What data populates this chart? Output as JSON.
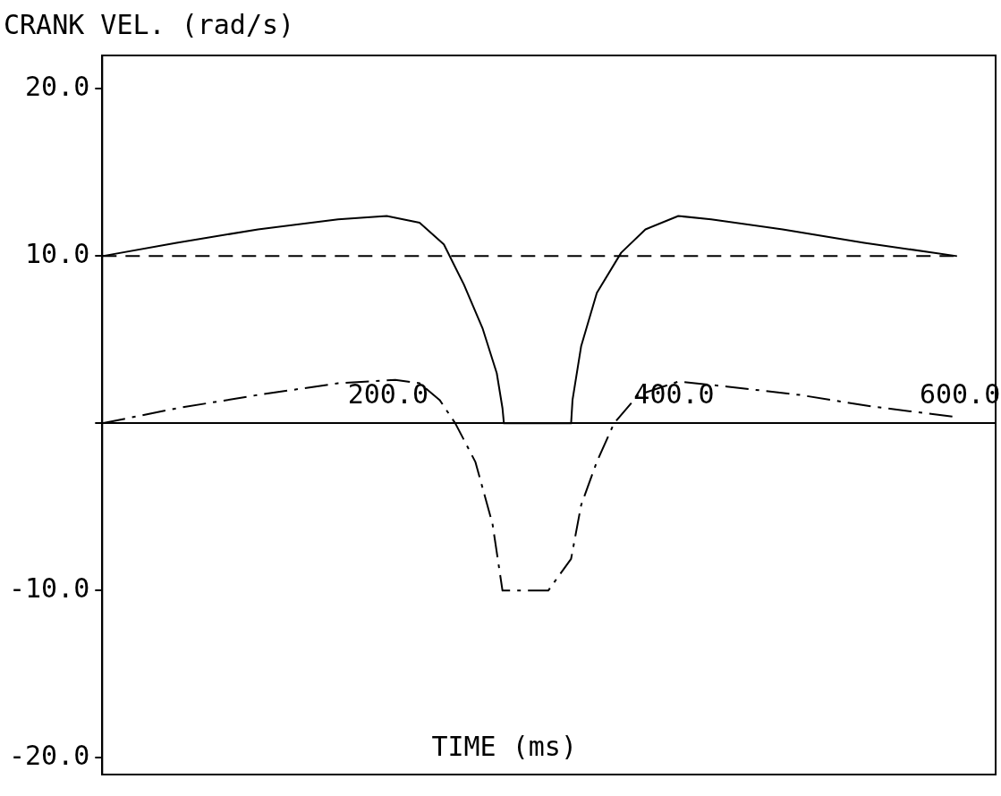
{
  "chart_data": {
    "type": "line",
    "title": "CRANK VEL. (rad/s)",
    "xlabel": "TIME (ms)",
    "series": [
      {
        "color": "#000000",
        "line_style": "solid",
        "x": [
          0,
          52,
          109,
          165,
          199,
          222,
          239,
          253,
          266,
          276,
          280,
          281,
          328,
          329,
          335,
          346,
          363,
          380,
          403,
          426,
          476,
          533,
          598
        ],
        "values": [
          10.0,
          10.8,
          11.6,
          12.2,
          12.4,
          12.0,
          10.7,
          8.3,
          5.7,
          3.0,
          0.9,
          0,
          0,
          1.4,
          4.6,
          7.8,
          10.2,
          11.6,
          12.4,
          12.2,
          11.6,
          10.8,
          10.0
        ]
      },
      {
        "color": "#000000",
        "line_style": "dashed",
        "x": [
          0,
          598
        ],
        "values": [
          10,
          10
        ]
      },
      {
        "color": "#000000",
        "line_style": "dashdot",
        "x": [
          0,
          52,
          109,
          165,
          205,
          222,
          236,
          247,
          261,
          273,
          280,
          312,
          328,
          335,
          346,
          358,
          375,
          403,
          437,
          488,
          539,
          595
        ],
        "values": [
          0,
          0.9,
          1.7,
          2.4,
          2.6,
          2.4,
          1.4,
          0,
          -2.3,
          -6.0,
          -10,
          -10,
          -8.1,
          -4.9,
          -2.3,
          0,
          1.7,
          2.5,
          2.2,
          1.7,
          1.0,
          0.4
        ]
      }
    ],
    "xlim": [
      0,
      625
    ],
    "ylim": [
      -21,
      22
    ],
    "xticks": [
      {
        "value": 200,
        "label": "200.0"
      },
      {
        "value": 400,
        "label": "400.0"
      },
      {
        "value": 600,
        "label": "600.0"
      }
    ],
    "yticks": [
      {
        "value": -20,
        "label": "-20.0"
      },
      {
        "value": -10,
        "label": "-10.0"
      },
      {
        "value": 0,
        "label": null
      },
      {
        "value": 10,
        "label": "10.0"
      },
      {
        "value": 20,
        "label": "20.0"
      }
    ],
    "marker": "none"
  }
}
